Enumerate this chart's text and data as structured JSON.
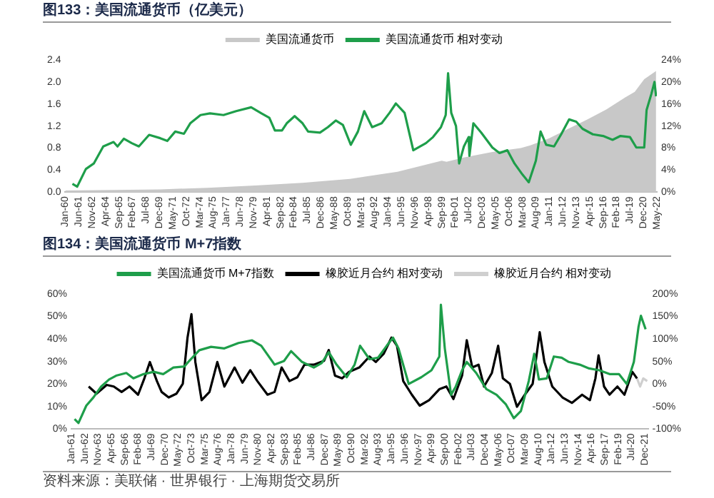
{
  "chart_data": [
    {
      "type": "line",
      "title": "图133：美国流通货币（亿美元）",
      "legend": "top",
      "marker": "none",
      "line_style": "solid",
      "grid": false,
      "xlim": [
        "1960-01",
        "2022-05"
      ],
      "xticks": [
        {
          "value": "1960-01",
          "label": "Jan-60"
        },
        {
          "value": "1961-06",
          "label": "Jun-61"
        },
        {
          "value": "1962-11",
          "label": "Nov-62"
        },
        {
          "value": "1964-04",
          "label": "Apr-64"
        },
        {
          "value": "1965-09",
          "label": "Sep-65"
        },
        {
          "value": "1967-02",
          "label": "Feb-67"
        },
        {
          "value": "1968-07",
          "label": "Jul-68"
        },
        {
          "value": "1969-12",
          "label": "Dec-69"
        },
        {
          "value": "1971-05",
          "label": "May-71"
        },
        {
          "value": "1972-10",
          "label": "Oct-72"
        },
        {
          "value": "1974-03",
          "label": "Mar-74"
        },
        {
          "value": "1975-08",
          "label": "Aug-75"
        },
        {
          "value": "1977-01",
          "label": "Jan-77"
        },
        {
          "value": "1978-06",
          "label": "Jun-78"
        },
        {
          "value": "1979-11",
          "label": "Nov-79"
        },
        {
          "value": "1981-04",
          "label": "Apr-81"
        },
        {
          "value": "1982-09",
          "label": "Sep-82"
        },
        {
          "value": "1984-02",
          "label": "Feb-84"
        },
        {
          "value": "1985-07",
          "label": "Jul-85"
        },
        {
          "value": "1986-12",
          "label": "Dec-86"
        },
        {
          "value": "1988-05",
          "label": "May-88"
        },
        {
          "value": "1989-10",
          "label": "Oct-89"
        },
        {
          "value": "1991-03",
          "label": "Mar-91"
        },
        {
          "value": "1992-08",
          "label": "Aug-92"
        },
        {
          "value": "1994-01",
          "label": "Jan-94"
        },
        {
          "value": "1995-06",
          "label": "Jun-95"
        },
        {
          "value": "1996-11",
          "label": "Nov-96"
        },
        {
          "value": "1998-04",
          "label": "Apr-98"
        },
        {
          "value": "1999-09",
          "label": "Sep-99"
        },
        {
          "value": "2001-02",
          "label": "Feb-01"
        },
        {
          "value": "2002-07",
          "label": "Jul-02"
        },
        {
          "value": "2003-12",
          "label": "Dec-03"
        },
        {
          "value": "2005-05",
          "label": "May-05"
        },
        {
          "value": "2006-10",
          "label": "Oct-06"
        },
        {
          "value": "2008-03",
          "label": "Mar-08"
        },
        {
          "value": "2009-08",
          "label": "Aug-09"
        },
        {
          "value": "2011-01",
          "label": "Jan-11"
        },
        {
          "value": "2012-06",
          "label": "Jun-12"
        },
        {
          "value": "2013-11",
          "label": "Nov-13"
        },
        {
          "value": "2015-04",
          "label": "Apr-15"
        },
        {
          "value": "2016-09",
          "label": "Sep-16"
        },
        {
          "value": "2018-02",
          "label": "Feb-18"
        },
        {
          "value": "2019-07",
          "label": "Jul-19"
        },
        {
          "value": "2020-12",
          "label": "Dec-20"
        },
        {
          "value": "2022-05",
          "label": "May-22"
        }
      ],
      "ylim": [
        0,
        2.4
      ],
      "yticks": [
        {
          "value": 0,
          "label": "0.0"
        },
        0.4,
        0.8,
        1.2,
        1.6,
        {
          "value": 2,
          "label": "2.0"
        },
        2.4
      ],
      "y2lim": [
        0,
        24
      ],
      "y2ticks": [
        {
          "value": 0,
          "label": "0%"
        },
        {
          "value": 4,
          "label": "4%"
        },
        {
          "value": 8,
          "label": "8%"
        },
        {
          "value": 12,
          "label": "12%"
        },
        {
          "value": 16,
          "label": "16%"
        },
        {
          "value": 20,
          "label": "20%"
        },
        {
          "value": 24,
          "label": "24%"
        }
      ],
      "series": [
        {
          "name": "美国流通货币",
          "type": "area",
          "color": "#c8c8c8",
          "x": [
            "1960-01",
            "1965-01",
            "1970-01",
            "1975-01",
            "1980-01",
            "1985-01",
            "1990-01",
            "1995-01",
            "1999-09",
            "2000-03",
            "2002-01",
            "2005-01",
            "2008-01",
            "2009-01",
            "2011-01",
            "2013-01",
            "2015-01",
            "2017-01",
            "2019-01",
            "2020-01",
            "2021-01",
            "2022-04"
          ],
          "values": [
            0.03,
            0.04,
            0.05,
            0.08,
            0.12,
            0.17,
            0.24,
            0.37,
            0.57,
            0.55,
            0.63,
            0.73,
            0.8,
            0.85,
            0.98,
            1.15,
            1.32,
            1.5,
            1.72,
            1.82,
            2.05,
            2.2
          ]
        },
        {
          "name": "美国流通货币 相对变动",
          "type": "line",
          "axis": "y2",
          "color": "#1e9e4a",
          "x": [
            "1960-10",
            "1961-04",
            "1962-03",
            "1963-01",
            "1964-01",
            "1965-02",
            "1965-07",
            "1966-03",
            "1967-01",
            "1967-10",
            "1968-11",
            "1970-01",
            "1970-10",
            "1971-08",
            "1972-07",
            "1973-03",
            "1974-04",
            "1975-04",
            "1976-09",
            "1978-01",
            "1979-08",
            "1980-09",
            "1981-07",
            "1982-02",
            "1982-11",
            "1983-05",
            "1984-03",
            "1985-01",
            "1985-08",
            "1986-11",
            "1987-09",
            "1988-07",
            "1989-04",
            "1990-02",
            "1990-11",
            "1991-07",
            "1992-05",
            "1993-05",
            "1994-03",
            "1994-11",
            "1995-10",
            "1996-09",
            "1998-01",
            "1998-10",
            "1999-08",
            "2000-02",
            "2000-05",
            "2000-09",
            "2001-03",
            "2001-07",
            "2002-01",
            "2002-07",
            "2002-08",
            "2003-01",
            "2003-11",
            "2005-01",
            "2005-10",
            "2006-08",
            "2007-05",
            "2008-03",
            "2008-11",
            "2009-08",
            "2010-02",
            "2010-09",
            "2011-07",
            "2012-04",
            "2013-02",
            "2013-11",
            "2014-07",
            "2015-08",
            "2016-09",
            "2017-09",
            "2018-07",
            "2019-07",
            "2020-03",
            "2021-01",
            "2021-04",
            "2021-10",
            "2022-02",
            "2022-04"
          ],
          "values": [
            1.5,
            1.0,
            4.2,
            5.2,
            8.3,
            9.1,
            8.3,
            9.7,
            8.9,
            8.3,
            10.4,
            9.8,
            9.3,
            11,
            10.6,
            12.5,
            14,
            14.3,
            14,
            14.7,
            15.4,
            14.3,
            13.5,
            11.2,
            11.2,
            12.5,
            13.8,
            12.5,
            11,
            10.8,
            11.8,
            13,
            12.2,
            8.6,
            11,
            14.7,
            11.8,
            12.5,
            14.4,
            16.1,
            14.4,
            7.6,
            8.9,
            10,
            11.8,
            14,
            21.6,
            14.4,
            12,
            5.2,
            8.3,
            10,
            6.6,
            12.5,
            10.8,
            8.1,
            7.1,
            7.6,
            5.2,
            3.2,
            1.8,
            5.7,
            11,
            8.6,
            8.3,
            10.5,
            13.2,
            12.8,
            11.5,
            10.5,
            10.2,
            9.5,
            10.2,
            10,
            8.1,
            8.1,
            14.9,
            17.8,
            20,
            17.4
          ]
        }
      ]
    },
    {
      "type": "line",
      "title": "图134：美国流通货币 M+7指数",
      "legend": "top",
      "marker": "none",
      "line_style": "solid",
      "grid": false,
      "annotations": [
        "资料来源：美联储 · 世界银行 · 上海期货交易所"
      ],
      "xlim": [
        "1961-01",
        "2022-04"
      ],
      "xticks": [
        {
          "value": "1961-01",
          "label": "Jan-61"
        },
        {
          "value": "1962-06",
          "label": "Jun-62"
        },
        {
          "value": "1963-11",
          "label": "Nov-63"
        },
        {
          "value": "1965-04",
          "label": "Apr-65"
        },
        {
          "value": "1966-09",
          "label": "Sep-66"
        },
        {
          "value": "1968-02",
          "label": "Feb-68"
        },
        {
          "value": "1969-07",
          "label": "Jul-69"
        },
        {
          "value": "1970-12",
          "label": "Dec-70"
        },
        {
          "value": "1972-05",
          "label": "May-72"
        },
        {
          "value": "1973-10",
          "label": "Oct-73"
        },
        {
          "value": "1975-03",
          "label": "Mar-75"
        },
        {
          "value": "1976-08",
          "label": "Aug-76"
        },
        {
          "value": "1978-01",
          "label": "Jan-78"
        },
        {
          "value": "1979-06",
          "label": "Jun-79"
        },
        {
          "value": "1980-11",
          "label": "Nov-80"
        },
        {
          "value": "1982-04",
          "label": "Apr-82"
        },
        {
          "value": "1983-09",
          "label": "Sep-83"
        },
        {
          "value": "1985-02",
          "label": "Feb-85"
        },
        {
          "value": "1986-07",
          "label": "Jul-86"
        },
        {
          "value": "1987-12",
          "label": "Dec-87"
        },
        {
          "value": "1989-05",
          "label": "May-89"
        },
        {
          "value": "1990-10",
          "label": "Oct-90"
        },
        {
          "value": "1992-03",
          "label": "Mar-92"
        },
        {
          "value": "1993-08",
          "label": "Aug-93"
        },
        {
          "value": "1995-01",
          "label": "Jan-95"
        },
        {
          "value": "1996-06",
          "label": "Jun-96"
        },
        {
          "value": "1997-11",
          "label": "Nov-97"
        },
        {
          "value": "1999-04",
          "label": "Apr-99"
        },
        {
          "value": "2000-09",
          "label": "Sep-00"
        },
        {
          "value": "2002-02",
          "label": "Feb-02"
        },
        {
          "value": "2003-07",
          "label": "Jul-03"
        },
        {
          "value": "2004-12",
          "label": "Dec-04"
        },
        {
          "value": "2006-05",
          "label": "May-06"
        },
        {
          "value": "2007-10",
          "label": "Oct-07"
        },
        {
          "value": "2009-03",
          "label": "Mar-09"
        },
        {
          "value": "2010-08",
          "label": "Aug-10"
        },
        {
          "value": "2012-01",
          "label": "Jan-12"
        },
        {
          "value": "2013-06",
          "label": "Jun-13"
        },
        {
          "value": "2014-11",
          "label": "Nov-14"
        },
        {
          "value": "2016-04",
          "label": "Apr-16"
        },
        {
          "value": "2017-09",
          "label": "Sep-17"
        },
        {
          "value": "2019-02",
          "label": "Feb-19"
        },
        {
          "value": "2020-07",
          "label": "Jul-20"
        },
        {
          "value": "2021-12",
          "label": "Dec-21"
        }
      ],
      "ylim": [
        0,
        60
      ],
      "yticks": [
        {
          "value": 0,
          "label": "0%"
        },
        {
          "value": 10,
          "label": "10%"
        },
        {
          "value": 20,
          "label": "20%"
        },
        {
          "value": 30,
          "label": "30%"
        },
        {
          "value": 40,
          "label": "40%"
        },
        {
          "value": 50,
          "label": "50%"
        },
        {
          "value": 60,
          "label": "60%"
        }
      ],
      "y2lim": [
        -100,
        200
      ],
      "y2ticks": [
        {
          "value": -100,
          "label": "-100%"
        },
        {
          "value": -50,
          "label": "-50%"
        },
        {
          "value": 0,
          "label": "0%"
        },
        {
          "value": 50,
          "label": "50%"
        },
        {
          "value": 100,
          "label": "100%"
        },
        {
          "value": 150,
          "label": "150%"
        },
        {
          "value": 200,
          "label": "200%"
        }
      ],
      "series": [
        {
          "name": "美国流通货币 M+7指数",
          "color": "#1e9e4a",
          "x": [
            "1961-05",
            "1961-10",
            "1962-08",
            "1963-05",
            "1964-03",
            "1965-01",
            "1965-10",
            "1966-11",
            "1967-08",
            "1968-09",
            "1969-10",
            "1970-10",
            "1971-11",
            "1973-01",
            "1973-07",
            "1974-08",
            "1975-11",
            "1977-04",
            "1978-10",
            "1980-03",
            "1981-03",
            "1982-08",
            "1983-08",
            "1984-05",
            "1985-07",
            "1986-10",
            "1987-08",
            "1988-05",
            "1989-03",
            "1990-04",
            "1991-02",
            "1991-09",
            "1992-09",
            "1993-08",
            "1994-07",
            "1995-03",
            "1995-10",
            "1996-11",
            "1998-03",
            "1999-04",
            "2000-02",
            "2000-04",
            "2000-09",
            "2001-05",
            "2001-11",
            "2002-07",
            "2003-01",
            "2004-01",
            "2005-02",
            "2006-03",
            "2007-03",
            "2008-01",
            "2008-10",
            "2009-08",
            "2010-03",
            "2010-09",
            "2011-07",
            "2012-04",
            "2013-02",
            "2013-11",
            "2015-01",
            "2016-01",
            "2017-02",
            "2018-03",
            "2019-03",
            "2020-01",
            "2020-10",
            "2021-04",
            "2021-07",
            "2022-01"
          ],
          "values": [
            4.4,
            2.7,
            10.4,
            14,
            18.9,
            22,
            23.7,
            24.9,
            22.5,
            24.4,
            25.4,
            24.4,
            27.3,
            27.8,
            30.2,
            35,
            36.5,
            35.8,
            38.2,
            39.4,
            37,
            28.6,
            30.2,
            34.6,
            29.8,
            27.3,
            29.3,
            34.1,
            28.6,
            23,
            28.6,
            37,
            31,
            31.7,
            37,
            40.6,
            35.8,
            20,
            23,
            26.1,
            32.2,
            55.2,
            35.8,
            15.2,
            18.9,
            26.1,
            29.8,
            24.9,
            17.7,
            15.2,
            10.9,
            4.8,
            8,
            21.3,
            33.4,
            22,
            22.5,
            32.2,
            31.7,
            29.8,
            28.6,
            26.9,
            26.1,
            24.4,
            24.4,
            20,
            29.8,
            45.5,
            50.3,
            44.3
          ]
        },
        {
          "name": "橡胶近月合约 相对变动",
          "axis": "y2",
          "color": "#000000",
          "x": [
            "1962-11",
            "1963-09",
            "1964-10",
            "1965-07",
            "1966-05",
            "1967-03",
            "1968-02",
            "1968-10",
            "1969-05",
            "1970-02",
            "1970-08",
            "1971-05",
            "1972-03",
            "1972-11",
            "1973-05",
            "1973-10",
            "1974-03",
            "1974-11",
            "1975-09",
            "1976-07",
            "1977-04",
            "1978-05",
            "1979-03",
            "1980-01",
            "1980-10",
            "1981-11",
            "1982-08",
            "1983-05",
            "1984-03",
            "1985-01",
            "1985-10",
            "1986-10",
            "1987-11",
            "1988-05",
            "1989-01",
            "1989-10",
            "1990-07",
            "1991-08",
            "1992-09",
            "1993-05",
            "1994-03",
            "1995-01",
            "1995-08",
            "1996-04",
            "1997-03",
            "1998-01",
            "1999-01",
            "2000-02",
            "2000-11",
            "2001-08",
            "2002-07",
            "2003-01",
            "2003-08",
            "2004-04",
            "2004-11",
            "2005-09",
            "2006-05",
            "2006-11",
            "2007-08",
            "2008-05",
            "2009-03",
            "2010-01",
            "2010-10",
            "2011-04",
            "2012-02",
            "2013-03",
            "2014-03",
            "2015-04",
            "2016-02",
            "2016-09",
            "2017-01",
            "2017-08",
            "2018-03",
            "2019-01",
            "2019-10",
            "2020-08",
            "2021-02"
          ],
          "values": [
            -5.6,
            -21.4,
            -2,
            -5.6,
            -17.7,
            -5.6,
            -23.8,
            12.5,
            48.8,
            6.5,
            -17.7,
            -29.8,
            -21.4,
            0.4,
            103,
            155,
            48.8,
            -35.9,
            -17.7,
            48.8,
            -5.6,
            36.7,
            2.9,
            30.7,
            6.5,
            -23.8,
            -17.7,
            36.7,
            6.5,
            15,
            42.8,
            42.8,
            51.3,
            75.5,
            18.6,
            12.5,
            27,
            36.7,
            61,
            48.8,
            67,
            103,
            85,
            6.5,
            -23.8,
            -48,
            -35.9,
            -11.7,
            -5.6,
            -33.4,
            18.6,
            97.2,
            36.7,
            42.8,
            -5.6,
            24.6,
            85,
            12.5,
            0.4,
            -50.4,
            -23.8,
            0.4,
            115,
            48.8,
            -5.6,
            -29.8,
            -42,
            -23.8,
            -35.9,
            12.5,
            63.4,
            -5.6,
            -23.8,
            -5.6,
            -23.8,
            27,
            12.5
          ]
        },
        {
          "name": "橡胶近月合约 相对变动",
          "axis": "y2",
          "color": "#cfcfcf",
          "x": [
            "2021-02",
            "2021-06",
            "2021-10",
            "2022-03"
          ],
          "values": [
            12.5,
            -5.6,
            12.5,
            6.5
          ]
        }
      ]
    }
  ]
}
